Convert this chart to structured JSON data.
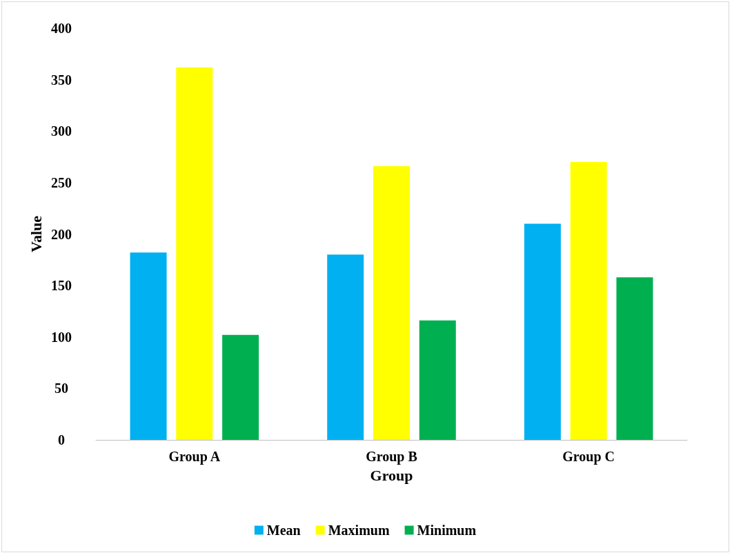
{
  "chart_data": {
    "type": "bar",
    "xlabel": "Group",
    "ylabel": "Value",
    "categories": [
      "Group A",
      "Group B",
      "Group C"
    ],
    "series": [
      {
        "name": "Mean",
        "color": "#00b0f0",
        "values": [
          182,
          180,
          210
        ]
      },
      {
        "name": "Maximum",
        "color": "#ffff00",
        "values": [
          362,
          266,
          270
        ]
      },
      {
        "name": "Minimum",
        "color": "#00b050",
        "values": [
          102,
          116,
          158
        ]
      }
    ],
    "ylim": [
      0,
      400
    ],
    "yticks": [
      0,
      50,
      100,
      150,
      200,
      250,
      300,
      350,
      400
    ],
    "grid": false,
    "legend": "bottom"
  }
}
